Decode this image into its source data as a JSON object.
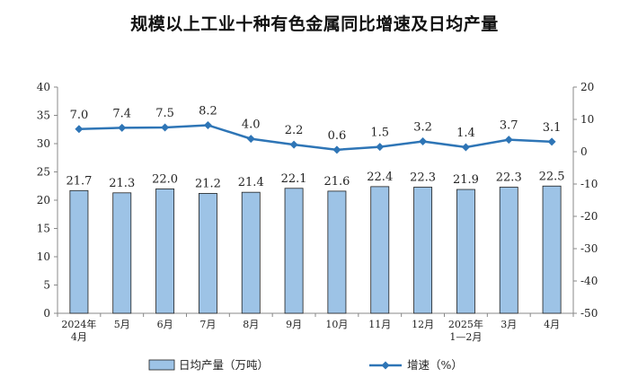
{
  "chart_data": {
    "title": "规模以上工业十种有色金属同比增速及日均产量",
    "type": "bar+line",
    "categories": [
      [
        "2024年",
        "4月"
      ],
      [
        "5月"
      ],
      [
        "6月"
      ],
      [
        "7月"
      ],
      [
        "8月"
      ],
      [
        "9月"
      ],
      [
        "10月"
      ],
      [
        "11月"
      ],
      [
        "12月"
      ],
      [
        "2025年",
        "1—2月"
      ],
      [
        "3月"
      ],
      [
        "4月"
      ]
    ],
    "series": [
      {
        "name": "日均产量（万吨）",
        "type": "bar",
        "axis": "left",
        "color": "#9DC3E6",
        "values": [
          21.7,
          21.3,
          22.0,
          21.2,
          21.4,
          22.1,
          21.6,
          22.4,
          22.3,
          21.9,
          22.3,
          22.5
        ],
        "labels": [
          "21.7",
          "21.3",
          "22.0",
          "21.2",
          "21.4",
          "22.1",
          "21.6",
          "22.4",
          "22.3",
          "21.9",
          "22.3",
          "22.5"
        ]
      },
      {
        "name": "增速（%）",
        "type": "line",
        "axis": "right",
        "color": "#2E75B6",
        "marker": "diamond",
        "values": [
          7.0,
          7.4,
          7.5,
          8.2,
          4.0,
          2.2,
          0.6,
          1.5,
          3.2,
          1.4,
          3.7,
          3.1
        ],
        "labels": [
          "7.0",
          "7.4",
          "7.5",
          "8.2",
          "4.0",
          "2.2",
          "0.6",
          "1.5",
          "3.2",
          "1.4",
          "3.7",
          "3.1"
        ]
      }
    ],
    "y_left": {
      "min": 0,
      "max": 40,
      "step": 5,
      "ticks": [
        "0",
        "5",
        "10",
        "15",
        "20",
        "25",
        "30",
        "35",
        "40"
      ]
    },
    "y_right": {
      "min": -50,
      "max": 20,
      "step": 10,
      "ticks": [
        "-50",
        "-40",
        "-30",
        "-20",
        "-10",
        "0",
        "10",
        "20"
      ]
    },
    "grid": false,
    "legend_position": "bottom"
  }
}
